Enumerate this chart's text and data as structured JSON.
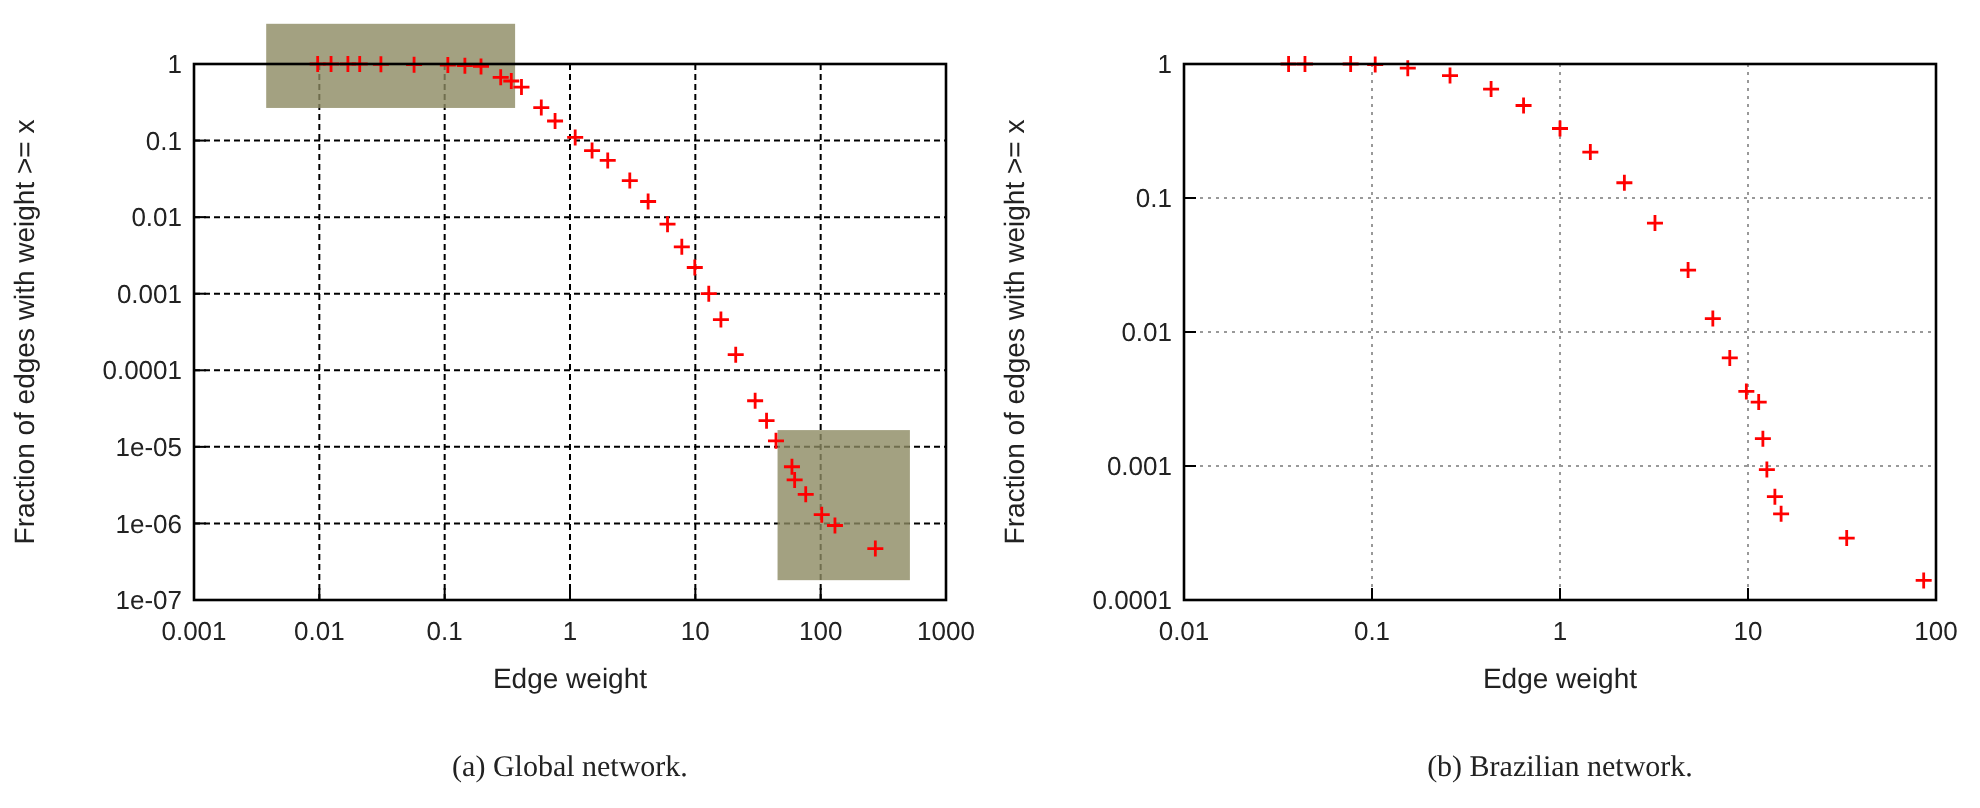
{
  "chart_data": [
    {
      "type": "scatter",
      "xlabel": "Edge weight",
      "ylabel": "Fraction of edges with weight >= x",
      "annotations": [
        "(a) Global network."
      ],
      "log": "xy",
      "grid": true,
      "marker": "cross",
      "xlim": [
        0.001,
        1000
      ],
      "ylim": [
        1e-07,
        1
      ],
      "xticks": [
        0.001,
        0.01,
        0.1,
        1,
        10,
        100,
        1000
      ],
      "yticks": [
        {
          "value": 1e-07,
          "label": "1e-07"
        },
        {
          "value": 1e-06,
          "label": "1e-06"
        },
        {
          "value": 1e-05,
          "label": "1e-05"
        },
        0.0001,
        0.001,
        0.01,
        0.1,
        1
      ],
      "series": [
        {
          "color": "#ff0000",
          "x": [
            0.0097,
            0.0124,
            0.0169,
            0.021,
            0.031,
            0.057,
            0.106,
            0.145,
            0.195,
            0.28,
            0.34,
            0.41,
            0.59,
            0.76,
            1.1,
            1.5,
            2.0,
            3.0,
            4.2,
            6.0,
            7.8,
            9.9,
            12.8,
            16,
            21,
            30,
            37,
            44,
            59,
            62,
            76,
            102,
            130,
            273
          ],
          "values": [
            1,
            1,
            1,
            1,
            0.99,
            0.98,
            0.97,
            0.95,
            0.93,
            0.67,
            0.6,
            0.5,
            0.27,
            0.18,
            0.11,
            0.074,
            0.055,
            0.03,
            0.016,
            0.0081,
            0.0041,
            0.0022,
            0.001,
            0.00046,
            0.00016,
            4e-05,
            2.2e-05,
            1.2e-05,
            5.5e-06,
            3.7e-06,
            2.4e-06,
            1.3e-06,
            9.4e-07,
            4.7e-07
          ]
        }
      ]
    },
    {
      "type": "scatter",
      "xlabel": "Edge weight",
      "ylabel": "Fraction of edges with weight >= x",
      "annotations": [
        "(b) Brazilian network."
      ],
      "log": "xy",
      "grid": true,
      "marker": "cross",
      "xlim": [
        0.01,
        100
      ],
      "ylim": [
        0.0001,
        1
      ],
      "xticks": [
        0.01,
        0.1,
        1,
        10,
        100
      ],
      "yticks": [
        0.0001,
        0.001,
        0.01,
        0.1,
        1
      ],
      "series": [
        {
          "color": "#ff0000",
          "x": [
            0.036,
            0.044,
            0.077,
            0.104,
            0.155,
            0.26,
            0.43,
            0.64,
            1.0,
            1.45,
            2.2,
            3.2,
            4.8,
            6.5,
            8.0,
            9.8,
            11.4,
            12.0,
            12.6,
            13.9,
            15.0,
            33.5,
            86
          ],
          "values": [
            1,
            1,
            1,
            0.99,
            0.93,
            0.82,
            0.65,
            0.49,
            0.33,
            0.22,
            0.13,
            0.065,
            0.029,
            0.0126,
            0.0064,
            0.0036,
            0.003,
            0.0016,
            0.00094,
            0.00059,
            0.00044,
            0.00029,
            0.00014
          ]
        }
      ]
    }
  ]
}
